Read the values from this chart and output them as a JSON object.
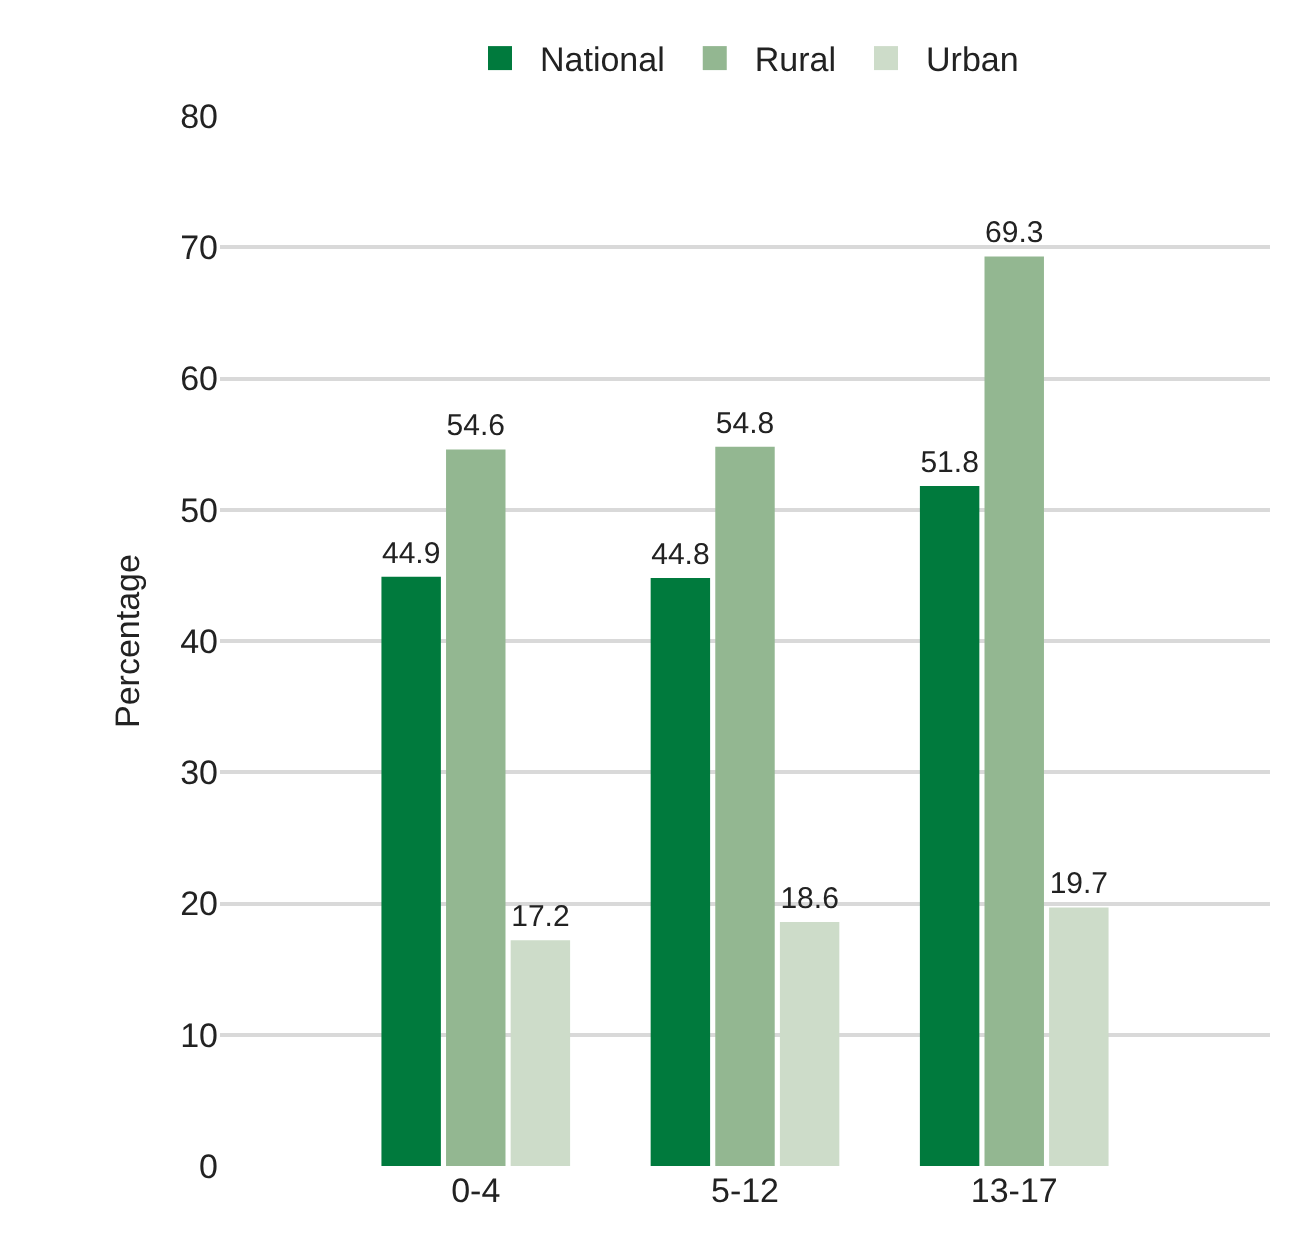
{
  "chart_data": {
    "type": "bar",
    "ylabel": "Percentage",
    "categories": [
      "0-4",
      "5-12",
      "13-17"
    ],
    "series": [
      {
        "name": "National",
        "color": "#007a3d",
        "values": [
          44.9,
          44.8,
          51.8
        ]
      },
      {
        "name": "Rural",
        "color": "#93b791",
        "values": [
          54.6,
          54.8,
          69.3
        ]
      },
      {
        "name": "Urban",
        "color": "#cddcc9",
        "values": [
          17.2,
          18.6,
          19.7
        ]
      }
    ],
    "ylim": [
      0,
      80
    ],
    "yticks": [
      0,
      10,
      20,
      30,
      40,
      50,
      60,
      70,
      80
    ],
    "grid": "y",
    "legend": "top",
    "data_labels": true
  }
}
